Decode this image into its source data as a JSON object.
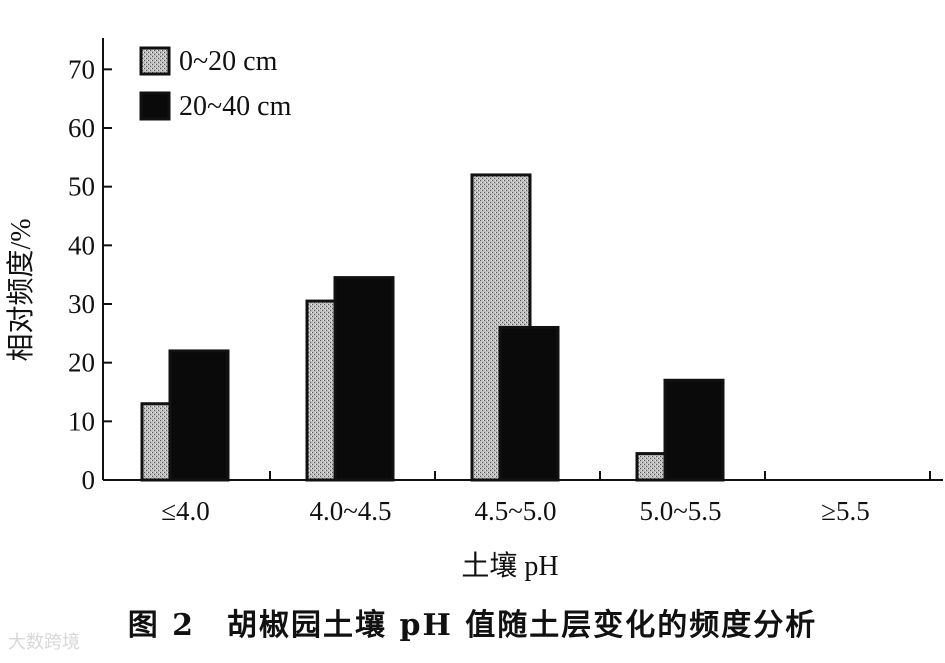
{
  "figure": {
    "caption": "图 2　胡椒园土壤 pH 值随土层变化的频度分析",
    "watermark": "大数跨境"
  },
  "chart_data": {
    "type": "bar",
    "title": "",
    "xlabel": "土壤 pH",
    "ylabel": "相对频度/%",
    "ylim": [
      0,
      75
    ],
    "yticks": [
      0,
      10,
      20,
      30,
      40,
      50,
      60,
      70
    ],
    "categories": [
      "≤4.0",
      "4.0~4.5",
      "4.5~5.0",
      "5.0~5.5",
      "≥5.5"
    ],
    "series": [
      {
        "name": "0~20 cm",
        "values": [
          13,
          30.5,
          52,
          4.5,
          0
        ],
        "color": "#b4b4b4",
        "pattern": "stipple"
      },
      {
        "name": "20~40 cm",
        "values": [
          22,
          34.5,
          26,
          17,
          0
        ],
        "color": "#0a0a0a",
        "pattern": "solid"
      }
    ],
    "legend_position": "top-left",
    "grid": false
  }
}
